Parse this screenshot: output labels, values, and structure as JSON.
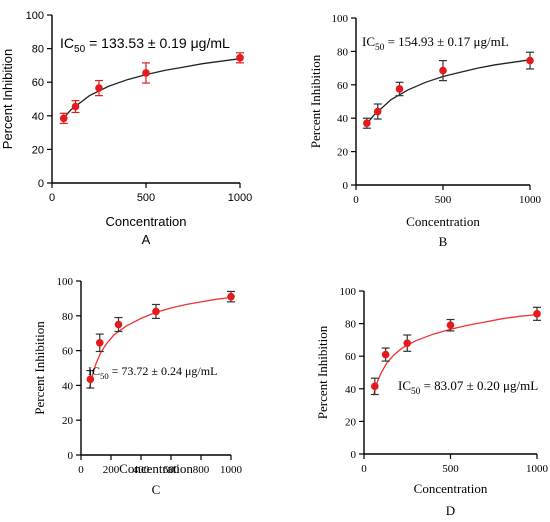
{
  "chart_data": [
    {
      "panel": "A",
      "type": "scatter",
      "xlabel": "Concentration",
      "ylabel": "Percent Inhibition",
      "xlim": [
        0,
        1000
      ],
      "ylim": [
        0,
        100
      ],
      "xticks": [
        0,
        500,
        1000
      ],
      "yticks": [
        0,
        20,
        40,
        60,
        80,
        100
      ],
      "annotation_prefix": "IC",
      "annotation_sub": "50",
      "annotation_rest": " = 133.53 ± 0.19 μg/mL",
      "marker_color": "#e41a1c",
      "fit_color": "#222222",
      "errorbar_color": "#e41a1c",
      "points": [
        {
          "x": 62.5,
          "y": 38.5,
          "err": 3
        },
        {
          "x": 125,
          "y": 45.5,
          "err": 3.5
        },
        {
          "x": 250,
          "y": 56.5,
          "err": 4.5
        },
        {
          "x": 500,
          "y": 65.5,
          "err": 6
        },
        {
          "x": 1000,
          "y": 74.5,
          "err": 3
        }
      ],
      "fit": [
        [
          50,
          37
        ],
        [
          100,
          43.5
        ],
        [
          200,
          52
        ],
        [
          300,
          57.5
        ],
        [
          400,
          61.5
        ],
        [
          500,
          64.5
        ],
        [
          600,
          67
        ],
        [
          700,
          69
        ],
        [
          800,
          71
        ],
        [
          900,
          72.5
        ],
        [
          1000,
          74
        ]
      ]
    },
    {
      "panel": "B",
      "type": "scatter",
      "xlabel": "Concentration",
      "ylabel": "Percent Inhibition",
      "xlim": [
        0,
        1000
      ],
      "ylim": [
        0,
        100
      ],
      "xticks": [
        0,
        500,
        1000
      ],
      "yticks": [
        0,
        20,
        40,
        60,
        80,
        100
      ],
      "annotation_prefix": "IC",
      "annotation_sub": "50",
      "annotation_rest": " = 154.93 ± 0.17 μg/mL",
      "marker_color": "#e41a1c",
      "fit_color": "#222222",
      "errorbar_color": "#333333",
      "points": [
        {
          "x": 62.5,
          "y": 37,
          "err": 3
        },
        {
          "x": 125,
          "y": 44,
          "err": 4.5
        },
        {
          "x": 250,
          "y": 57.5,
          "err": 4
        },
        {
          "x": 500,
          "y": 68.5,
          "err": 6
        },
        {
          "x": 1000,
          "y": 74.5,
          "err": 5
        }
      ],
      "fit": [
        [
          50,
          35
        ],
        [
          100,
          41.5
        ],
        [
          200,
          51
        ],
        [
          300,
          57
        ],
        [
          400,
          61.5
        ],
        [
          500,
          65
        ],
        [
          600,
          67.5
        ],
        [
          700,
          70
        ],
        [
          800,
          72
        ],
        [
          900,
          73.5
        ],
        [
          1000,
          75
        ]
      ]
    },
    {
      "panel": "C",
      "type": "scatter",
      "xlabel": "Concentration",
      "ylabel": "Percent Inhibition",
      "xlim": [
        0,
        1000
      ],
      "ylim": [
        0,
        100
      ],
      "xticks": [
        0,
        200,
        400,
        600,
        800,
        1000
      ],
      "yticks": [
        0,
        20,
        40,
        60,
        80,
        100
      ],
      "annotation_prefix": "IC",
      "annotation_sub": "50",
      "annotation_rest": " = 73.72 ± 0.24 μg/mL",
      "marker_color": "#e41a1c",
      "fit_color": "#ee3333",
      "errorbar_color": "#333333",
      "points": [
        {
          "x": 62.5,
          "y": 43.5,
          "err": 5
        },
        {
          "x": 125,
          "y": 64.5,
          "err": 5
        },
        {
          "x": 250,
          "y": 75,
          "err": 4
        },
        {
          "x": 500,
          "y": 82.5,
          "err": 4
        },
        {
          "x": 1000,
          "y": 91,
          "err": 3
        }
      ],
      "fit": [
        [
          55,
          38
        ],
        [
          80,
          47
        ],
        [
          100,
          52.5
        ],
        [
          130,
          58.5
        ],
        [
          170,
          64
        ],
        [
          220,
          69
        ],
        [
          300,
          74
        ],
        [
          400,
          78.5
        ],
        [
          500,
          82
        ],
        [
          600,
          84.5
        ],
        [
          700,
          86.5
        ],
        [
          800,
          88
        ],
        [
          900,
          89.5
        ],
        [
          1000,
          90.5
        ]
      ]
    },
    {
      "panel": "D",
      "type": "scatter",
      "xlabel": "Concentration",
      "ylabel": "Percent Inhibition",
      "xlim": [
        0,
        1000
      ],
      "ylim": [
        0,
        100
      ],
      "xticks": [
        0,
        500,
        1000
      ],
      "yticks": [
        0,
        20,
        40,
        60,
        80,
        100
      ],
      "annotation_prefix": "IC",
      "annotation_sub": "50",
      "annotation_rest": " = 83.07 ± 0.20 μg/mL",
      "marker_color": "#e41a1c",
      "fit_color": "#ee3333",
      "errorbar_color": "#333333",
      "points": [
        {
          "x": 62.5,
          "y": 41.5,
          "err": 5
        },
        {
          "x": 125,
          "y": 61,
          "err": 4
        },
        {
          "x": 250,
          "y": 68,
          "err": 5
        },
        {
          "x": 500,
          "y": 79,
          "err": 3.5
        },
        {
          "x": 1000,
          "y": 86,
          "err": 4
        }
      ],
      "fit": [
        [
          55,
          36
        ],
        [
          80,
          45
        ],
        [
          100,
          50
        ],
        [
          130,
          55.5
        ],
        [
          170,
          60.5
        ],
        [
          220,
          65
        ],
        [
          300,
          69.5
        ],
        [
          400,
          73.5
        ],
        [
          500,
          76.5
        ],
        [
          600,
          79
        ],
        [
          700,
          81
        ],
        [
          800,
          83
        ],
        [
          900,
          84.5
        ],
        [
          1000,
          85.5
        ]
      ]
    }
  ]
}
